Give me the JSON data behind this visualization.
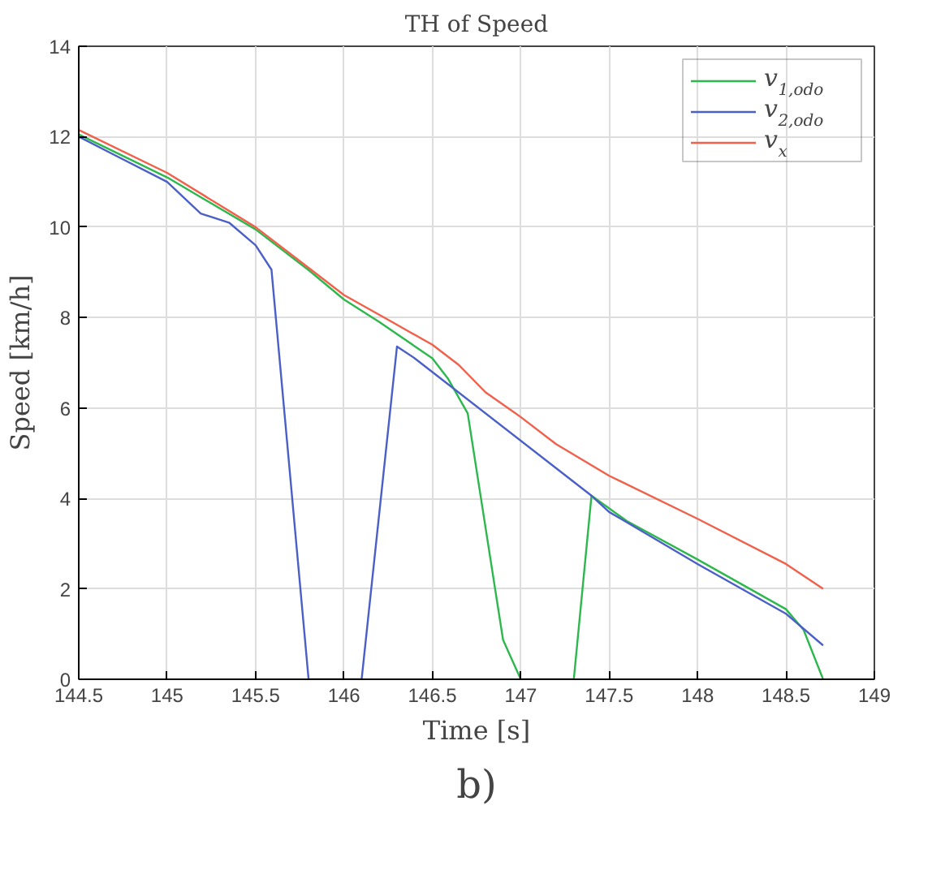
{
  "chart_data": {
    "type": "line",
    "title": "TH of Speed",
    "xlabel": "Time [s]",
    "ylabel": "Speed [km/h]",
    "xlim": [
      144.5,
      149
    ],
    "ylim": [
      0,
      14
    ],
    "xticks": [
      144.5,
      145,
      145.5,
      146,
      146.5,
      147,
      147.5,
      148,
      148.5,
      149
    ],
    "yticks": [
      0,
      2,
      4,
      6,
      8,
      10,
      12,
      14
    ],
    "grid": true,
    "legend": "top right",
    "line_style": "solid",
    "annotations": [
      "b)"
    ],
    "series": [
      {
        "name": "v$_{1,odo}$",
        "color": "#2db84d",
        "x": [
          144.5,
          145,
          145.5,
          145.8,
          146,
          146.2,
          146.5,
          146.59,
          146.7,
          146.9,
          147.0,
          147.3,
          147.4,
          147.6,
          148,
          148.5,
          148.6,
          148.71
        ],
        "values": [
          12.05,
          11.1,
          9.95,
          9.05,
          8.4,
          7.9,
          7.1,
          6.64,
          5.88,
          0.87,
          0,
          0,
          4.06,
          3.5,
          2.65,
          1.55,
          1.09,
          0
        ]
      },
      {
        "name": "v$_{2,odo}$",
        "color": "#4a5fc8",
        "x": [
          144.5,
          144.7,
          145,
          145.19,
          145.35,
          145.5,
          145.59,
          145.8,
          146.1,
          146.3,
          146.4,
          147.4,
          147.5,
          148,
          148.5,
          148.71
        ],
        "values": [
          12.0,
          11.6,
          11.0,
          10.3,
          10.1,
          9.6,
          9.06,
          0,
          0,
          7.36,
          7.1,
          4.06,
          3.7,
          2.55,
          1.45,
          0.75
        ]
      },
      {
        "name": "v$_{x}$",
        "color": "#f0604a",
        "x": [
          144.5,
          145,
          145.5,
          145.8,
          146,
          146.25,
          146.5,
          146.65,
          146.8,
          147,
          147.2,
          147.5,
          148,
          148.5,
          148.71
        ],
        "values": [
          12.15,
          11.2,
          10.0,
          9.1,
          8.5,
          7.95,
          7.4,
          6.95,
          6.35,
          5.8,
          5.2,
          4.5,
          3.55,
          2.55,
          2.0
        ]
      }
    ]
  }
}
